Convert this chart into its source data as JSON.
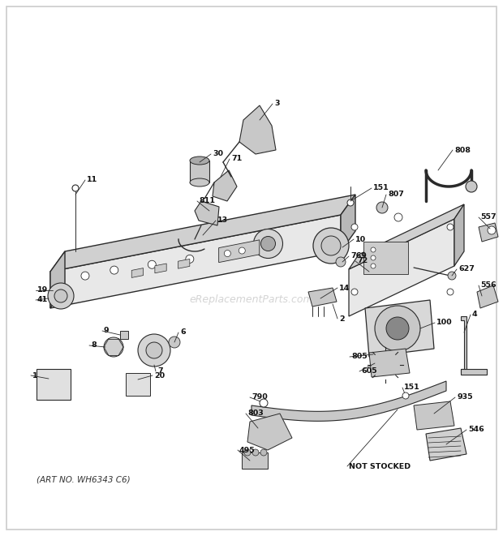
{
  "bg_color": "#ffffff",
  "border_color": "#cccccc",
  "art_no": "(ART NO. WH6343 C6)",
  "watermark": "eReplacementParts.com",
  "line_color": "#2a2a2a",
  "fill_light": "#e0e0e0",
  "fill_mid": "#c8c8c8",
  "fill_dark": "#aaaaaa"
}
